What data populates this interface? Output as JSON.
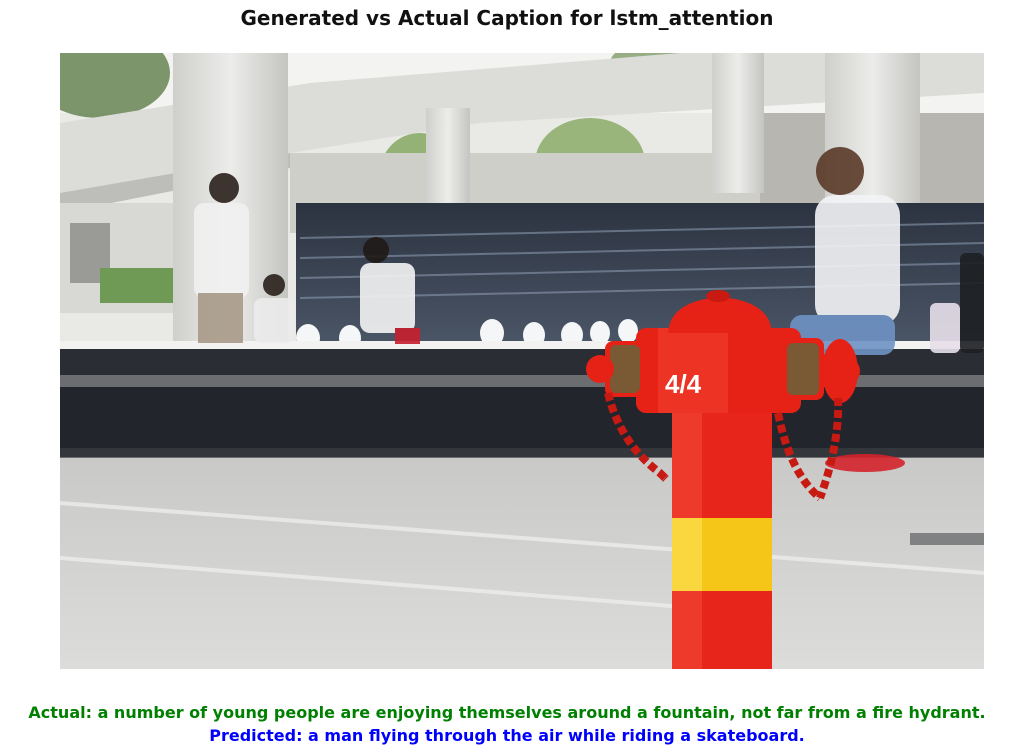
{
  "title": "Generated vs Actual Caption for lstm_attention",
  "photo": {
    "subject": "fire-hydrant-fountain-photo",
    "hydrant_label": "4/4"
  },
  "captions": {
    "actual": "Actual: a number of young people are enjoying themselves around a fountain, not far from a fire hydrant.",
    "predicted": "Predicted: a man flying through the air while riding a skateboard."
  },
  "colors": {
    "actual": "#008000",
    "predicted": "#0000ff",
    "hydrant_red": "#e8251a",
    "hydrant_yellow": "#f5c518"
  }
}
